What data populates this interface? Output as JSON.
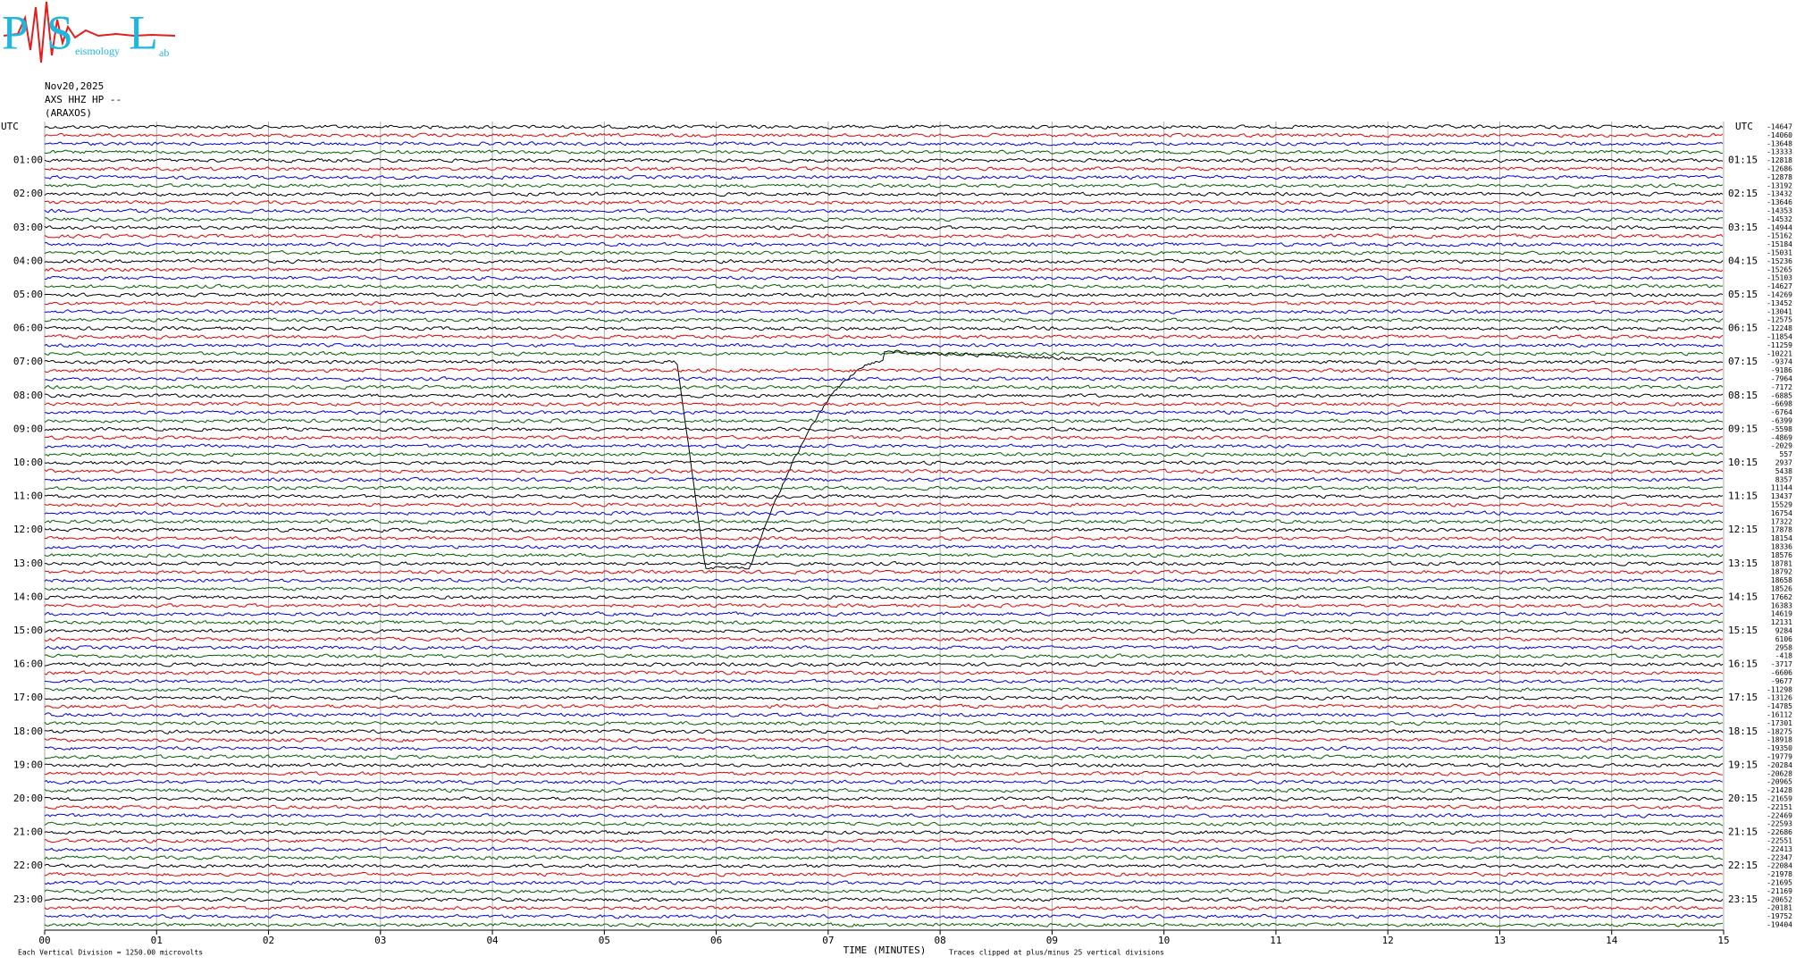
{
  "logo": {
    "p": "P",
    "s": "S",
    "l": "L",
    "seismology": "eismology",
    "lab": "ab"
  },
  "chart_data": {
    "type": "helicorder",
    "date": "Nov20,2025",
    "channel": "AXS HHZ HP --",
    "station": "(ARAXOS)",
    "left_axis_title": "UTC",
    "right_axis_title": "UTC",
    "row_labels_left": [
      "01:00",
      "02:00",
      "03:00",
      "04:00",
      "05:00",
      "06:00",
      "07:00",
      "08:00",
      "09:00",
      "10:00",
      "11:00",
      "12:00",
      "13:00",
      "14:00",
      "15:00",
      "16:00",
      "17:00",
      "18:00",
      "19:00",
      "20:00",
      "21:00",
      "22:00",
      "23:00"
    ],
    "row_labels_right": [
      "01:15",
      "02:15",
      "03:15",
      "04:15",
      "05:15",
      "06:15",
      "07:15",
      "08:15",
      "09:15",
      "10:15",
      "11:15",
      "12:15",
      "13:15",
      "14:15",
      "15:15",
      "16:15",
      "17:15",
      "18:15",
      "19:15",
      "20:15",
      "21:15",
      "22:15",
      "23:15"
    ],
    "xlabel": "TIME (MINUTES)",
    "xlim": [
      0,
      15
    ],
    "xticks": [
      {
        "value": 0,
        "label": "00"
      },
      {
        "value": 1,
        "label": "01"
      },
      {
        "value": 2,
        "label": "02"
      },
      {
        "value": 3,
        "label": "03"
      },
      {
        "value": 4,
        "label": "04"
      },
      {
        "value": 5,
        "label": "05"
      },
      {
        "value": 6,
        "label": "06"
      },
      {
        "value": 7,
        "label": "07"
      },
      {
        "value": 8,
        "label": "08"
      },
      {
        "value": 9,
        "label": "09"
      },
      10,
      11,
      12,
      13,
      14,
      15
    ],
    "scale_note": "Each Vertical Division = 1250.00 microvolts",
    "clip_note": "Traces clipped at plus/minus 25 vertical divisions",
    "trace_colors": [
      "#000000",
      "#e00000",
      "#0000e0",
      "#006000"
    ],
    "trace_offsets": [
      -14647,
      -14060,
      -13648,
      -13333,
      -12818,
      -12686,
      -12878,
      -13192,
      -13432,
      -13646,
      -14353,
      -14532,
      -14944,
      -15162,
      -15184,
      -15031,
      -15236,
      -15265,
      -15103,
      -14627,
      -14269,
      -13452,
      -13041,
      -12575,
      -12248,
      -11854,
      -11259,
      -10221,
      -9374,
      -9186,
      -7964,
      -7172,
      -6885,
      -6698,
      -6764,
      -6399,
      -5598,
      -4869,
      -2029,
      557,
      2937,
      5438,
      8357,
      11144,
      13437,
      15529,
      16754,
      17322,
      17878,
      18154,
      18336,
      18576,
      18781,
      18792,
      18658,
      18526,
      17662,
      16383,
      14619,
      12131,
      9284,
      6106,
      2958,
      -418,
      -3717,
      -6606,
      -9677,
      -11298,
      -13126,
      -14785,
      -16112,
      -17301,
      -18275,
      -18918,
      -19350,
      -19779,
      -20284,
      -20628,
      -20965,
      -21428,
      -21659,
      -22151,
      -22469,
      -22593,
      -22686,
      -22551,
      -22413,
      -22347,
      -22084,
      -21978,
      -21695,
      -21169,
      -20652,
      -20181,
      -19752,
      -19404
    ]
  }
}
